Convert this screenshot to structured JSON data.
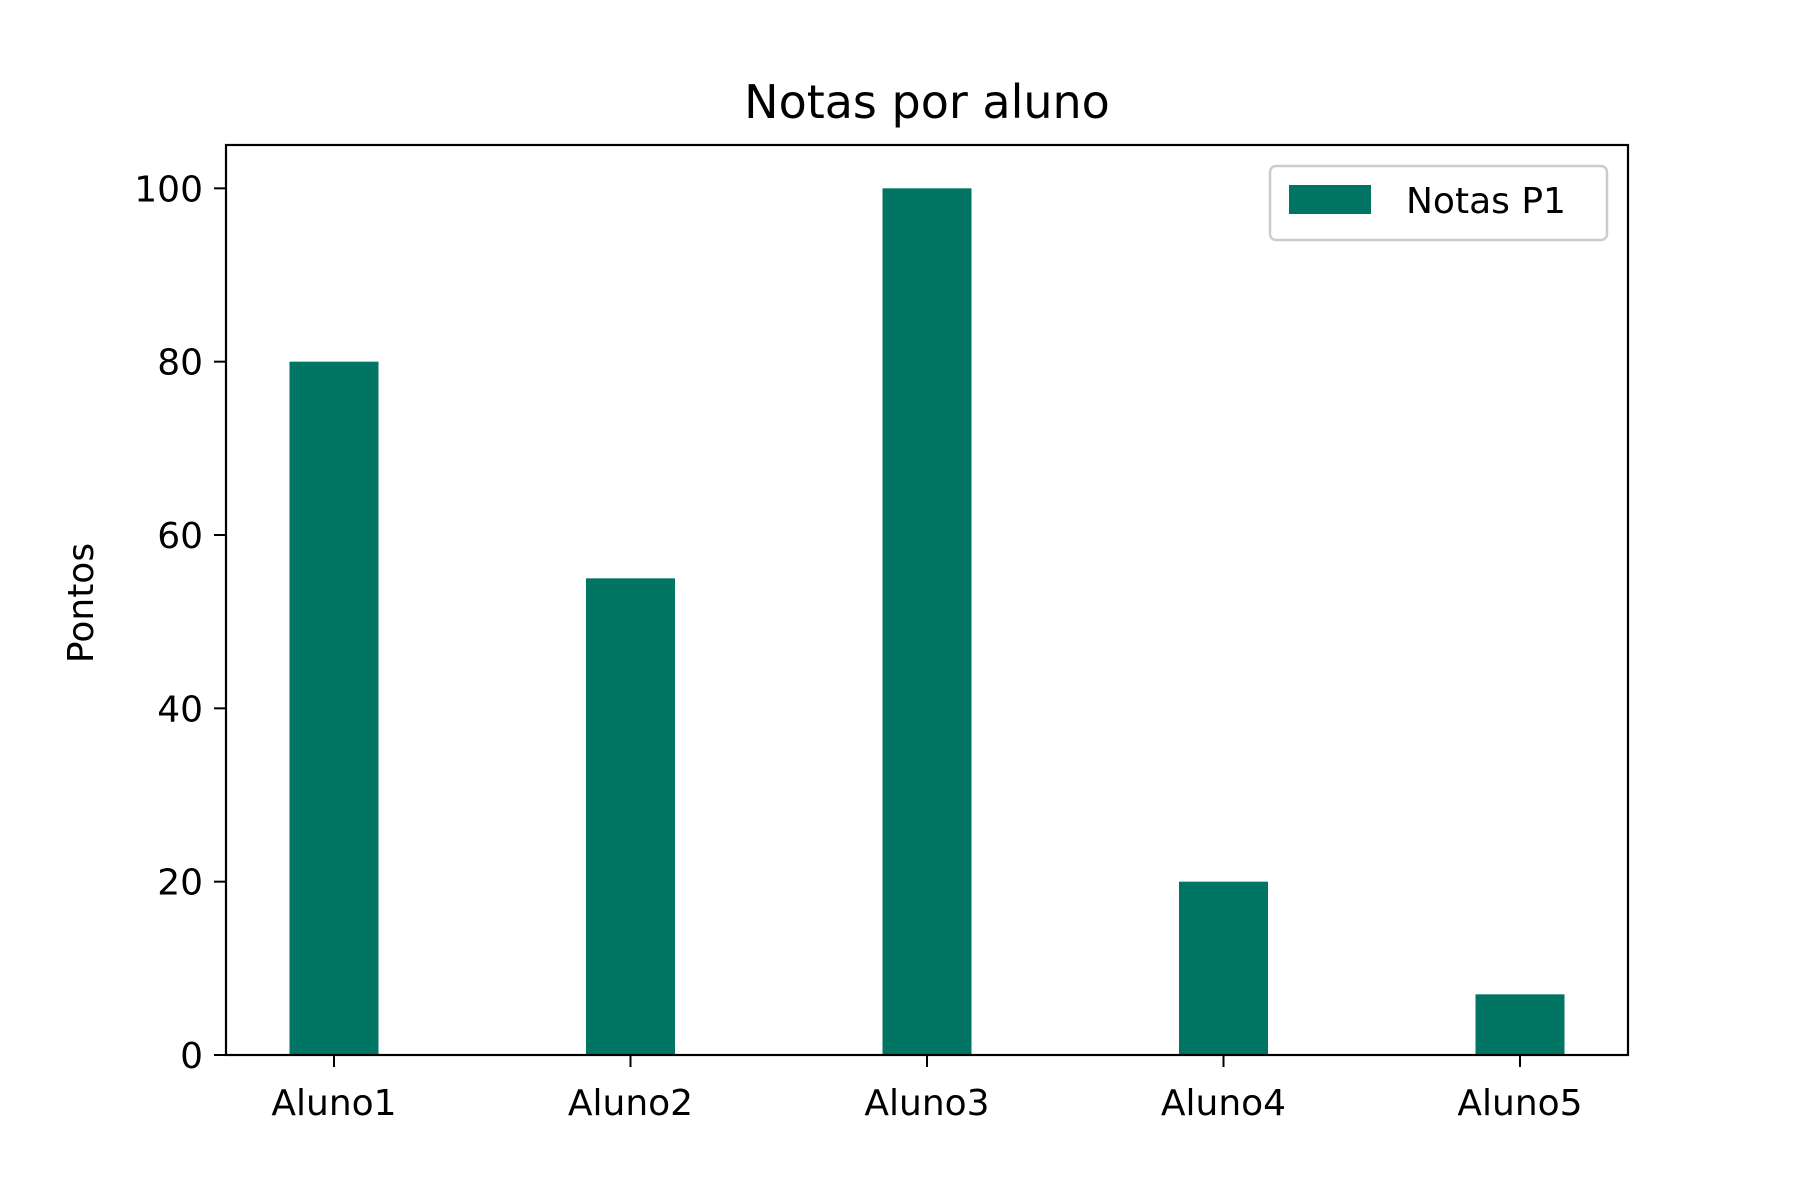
{
  "chart_data": {
    "type": "bar",
    "title": "Notas por aluno",
    "xlabel": "",
    "ylabel": "Pontos",
    "categories": [
      "Aluno1",
      "Aluno2",
      "Aluno3",
      "Aluno4",
      "Aluno5"
    ],
    "series": [
      {
        "name": "Notas P1",
        "color": "#007563",
        "values": [
          80,
          55,
          100,
          20,
          7
        ]
      }
    ],
    "ylim": [
      0,
      105
    ],
    "yticks": [
      0,
      20,
      40,
      60,
      80,
      100
    ],
    "grid": false,
    "legend_position": "top-right"
  }
}
